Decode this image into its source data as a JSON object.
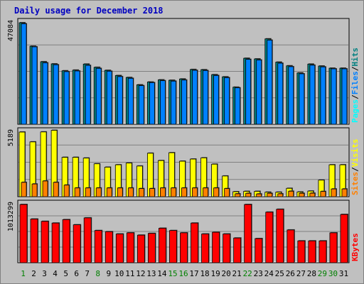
{
  "title": "Daily usage for December 2018",
  "colors": {
    "background": "#c0c0c0",
    "plot": "#c0c0c0",
    "title": "#0000c0",
    "pages": "#00ffff",
    "files": "#0080ff",
    "hits": "#008080",
    "sites": "#ff8000",
    "visits": "#ffff00",
    "kbytes": "#ff0000",
    "weekend": "#008000",
    "weekday": "#000000"
  },
  "chart_data": [
    {
      "type": "bar",
      "name": "hits-files-pages",
      "max_label": "47084",
      "ylim": [
        0,
        47084
      ],
      "legend": [
        {
          "text": "Pages",
          "color_key": "pages"
        },
        {
          "text": "Files",
          "color_key": "files"
        },
        {
          "text": "Hits",
          "color_key": "hits"
        }
      ],
      "separator": "/",
      "categories": [
        "1",
        "2",
        "3",
        "4",
        "5",
        "6",
        "7",
        "8",
        "9",
        "10",
        "11",
        "12",
        "13",
        "14",
        "15",
        "16",
        "17",
        "18",
        "19",
        "20",
        "21",
        "22",
        "23",
        "24",
        "25",
        "26",
        "27",
        "28",
        "29",
        "30",
        "31"
      ],
      "series": [
        {
          "key": "hits",
          "values": [
            47084,
            36200,
            29000,
            28000,
            24800,
            25100,
            27900,
            26400,
            25000,
            22600,
            21700,
            18300,
            19600,
            20600,
            20400,
            21000,
            25400,
            25300,
            23000,
            22000,
            17200,
            30600,
            30300,
            39600,
            28800,
            27100,
            23800,
            27900,
            27000,
            26000,
            26000
          ]
        },
        {
          "key": "files",
          "values": [
            46600,
            35900,
            28500,
            27600,
            24400,
            24700,
            27300,
            25900,
            24600,
            22100,
            21300,
            17900,
            19300,
            20200,
            20000,
            20500,
            25000,
            24900,
            22600,
            21600,
            16900,
            30100,
            29800,
            39000,
            28300,
            26700,
            23400,
            27400,
            26600,
            25700,
            25700
          ]
        }
      ]
    },
    {
      "type": "bar",
      "name": "visits-sites",
      "max_label": "5189",
      "ylim": [
        0,
        5189
      ],
      "legend": [
        {
          "text": "Sites",
          "color_key": "sites"
        },
        {
          "text": "Visits",
          "color_key": "visits"
        }
      ],
      "separator": "/",
      "categories": [
        "1",
        "2",
        "3",
        "4",
        "5",
        "6",
        "7",
        "8",
        "9",
        "10",
        "11",
        "12",
        "13",
        "14",
        "15",
        "16",
        "17",
        "18",
        "19",
        "20",
        "21",
        "22",
        "23",
        "24",
        "25",
        "26",
        "27",
        "28",
        "29",
        "30",
        "31"
      ],
      "series": [
        {
          "key": "visits",
          "values": [
            5189,
            4400,
            5200,
            5330,
            3160,
            3160,
            3100,
            2640,
            2370,
            2560,
            2700,
            2460,
            3490,
            2900,
            3530,
            2850,
            3020,
            3120,
            2610,
            1660,
            400,
            430,
            430,
            360,
            360,
            670,
            380,
            450,
            1330,
            2560,
            2560
          ]
        },
        {
          "key": "sites",
          "values": [
            1150,
            1020,
            1260,
            1150,
            930,
            700,
            700,
            700,
            700,
            700,
            700,
            650,
            650,
            700,
            700,
            700,
            700,
            700,
            700,
            650,
            230,
            270,
            220,
            270,
            230,
            440,
            270,
            280,
            420,
            620,
            620
          ]
        }
      ]
    },
    {
      "type": "bar",
      "name": "kbytes",
      "max_label": "1013299",
      "ylim": [
        0,
        1013299
      ],
      "legend": [
        {
          "text": "KBytes",
          "color_key": "kbytes"
        }
      ],
      "separator": "",
      "categories": [
        "1",
        "2",
        "3",
        "4",
        "5",
        "6",
        "7",
        "8",
        "9",
        "10",
        "11",
        "12",
        "13",
        "14",
        "15",
        "16",
        "17",
        "18",
        "19",
        "20",
        "21",
        "22",
        "23",
        "24",
        "25",
        "26",
        "27",
        "28",
        "29",
        "30",
        "31"
      ],
      "series": [
        {
          "key": "kbytes",
          "values": [
            1013299,
            760000,
            720000,
            690000,
            750000,
            660000,
            780000,
            560000,
            540000,
            500000,
            520000,
            480000,
            510000,
            600000,
            560000,
            520000,
            690000,
            500000,
            530000,
            500000,
            430000,
            1013299,
            420000,
            880000,
            930000,
            570000,
            380000,
            380000,
            380000,
            520000,
            840000
          ]
        }
      ]
    }
  ],
  "weekend_days": [
    "1",
    "8",
    "15",
    "16",
    "22",
    "29",
    "30"
  ],
  "weekend_color_days": [
    "1",
    "8",
    "15",
    "16",
    "22",
    "29",
    "30"
  ]
}
